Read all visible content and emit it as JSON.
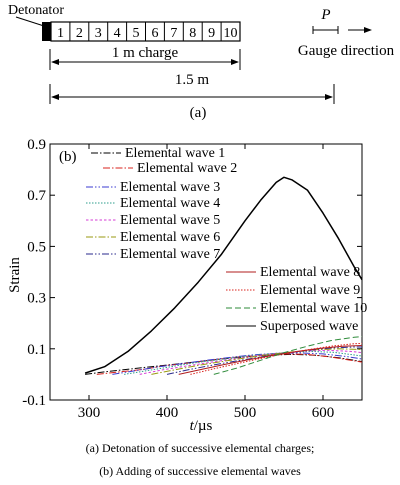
{
  "diagram": {
    "detonator_label": "Detonator",
    "segments": [
      "1",
      "2",
      "3",
      "4",
      "5",
      "6",
      "7",
      "8",
      "9",
      "10"
    ],
    "charge_label": "1 m charge",
    "total_label": "1.5 m",
    "part_label": "(a)",
    "gauge_symbol": "P",
    "gauge_label": "Gauge direction"
  },
  "chart_data": {
    "type": "line",
    "panel_label": "(b)",
    "ylabel": "Strain",
    "xlabel_italic": "t",
    "xlabel_unit": "/µs",
    "xlim": [
      250,
      650
    ],
    "ylim": [
      -0.1,
      0.9
    ],
    "xticks": [
      300,
      400,
      500,
      600
    ],
    "yticks": [
      "-0.1",
      "0.1",
      "0.3",
      "0.5",
      "0.7",
      "0.9"
    ],
    "ytick_values": [
      -0.1,
      0.1,
      0.3,
      0.5,
      0.7,
      0.9
    ],
    "series": [
      {
        "name": "Elemental wave 1",
        "color": "#000000",
        "dash": "7,2,1.5,2",
        "x": [
          295,
          320,
          350,
          380,
          410,
          440,
          470,
          500,
          530,
          560,
          590,
          620,
          650
        ],
        "y": [
          0.0,
          0.01,
          0.02,
          0.03,
          0.04,
          0.05,
          0.06,
          0.068,
          0.075,
          0.078,
          0.075,
          0.065,
          0.05
        ]
      },
      {
        "name": "Elemental wave 2",
        "color": "#d9231d",
        "dash": "7,2,1.5,2",
        "x": [
          310,
          340,
          370,
          400,
          430,
          460,
          490,
          520,
          550,
          580,
          610,
          650
        ],
        "y": [
          0.0,
          0.01,
          0.02,
          0.035,
          0.045,
          0.058,
          0.068,
          0.075,
          0.08,
          0.078,
          0.068,
          0.048
        ]
      },
      {
        "name": "Elemental wave 3",
        "color": "#3b3bd1",
        "dash": "7,2,1.5,2,1.5,2",
        "x": [
          330,
          360,
          390,
          420,
          450,
          480,
          510,
          540,
          570,
          600,
          630,
          650
        ],
        "y": [
          0.0,
          0.015,
          0.03,
          0.042,
          0.055,
          0.066,
          0.076,
          0.082,
          0.084,
          0.08,
          0.07,
          0.06
        ]
      },
      {
        "name": "Elemental wave 4",
        "color": "#2e9e8c",
        "dash": "1.5,1.5",
        "x": [
          345,
          375,
          405,
          435,
          465,
          495,
          525,
          555,
          585,
          615,
          650
        ],
        "y": [
          0.0,
          0.015,
          0.03,
          0.045,
          0.057,
          0.069,
          0.079,
          0.086,
          0.09,
          0.086,
          0.072
        ]
      },
      {
        "name": "Elemental wave 5",
        "color": "#d63bd6",
        "dash": "2.5,2",
        "x": [
          365,
          395,
          425,
          455,
          485,
          515,
          545,
          575,
          605,
          635,
          650
        ],
        "y": [
          0.0,
          0.018,
          0.033,
          0.047,
          0.06,
          0.073,
          0.083,
          0.091,
          0.094,
          0.09,
          0.085
        ]
      },
      {
        "name": "Elemental wave 6",
        "color": "#9a9a10",
        "dash": "7,2,1.5,2",
        "x": [
          380,
          410,
          440,
          470,
          500,
          530,
          560,
          590,
          620,
          650
        ],
        "y": [
          0.0,
          0.018,
          0.035,
          0.05,
          0.064,
          0.077,
          0.088,
          0.096,
          0.1,
          0.097
        ]
      },
      {
        "name": "Elemental wave 7",
        "color": "#2a2a8c",
        "dash": "7,2,1.5,2,1.5,2",
        "x": [
          400,
          430,
          460,
          490,
          520,
          550,
          580,
          610,
          640,
          650
        ],
        "y": [
          0.0,
          0.02,
          0.037,
          0.053,
          0.068,
          0.082,
          0.094,
          0.103,
          0.107,
          0.107
        ]
      },
      {
        "name": "Elemental wave 8",
        "color": "#b01c1c",
        "dash": "",
        "x": [
          415,
          445,
          475,
          505,
          535,
          565,
          595,
          625,
          650
        ],
        "y": [
          0.0,
          0.02,
          0.04,
          0.058,
          0.074,
          0.089,
          0.101,
          0.11,
          0.113
        ]
      },
      {
        "name": "Elemental wave 9",
        "color": "#d9231d",
        "dash": "1.5,1.5",
        "x": [
          430,
          460,
          490,
          520,
          550,
          580,
          610,
          640,
          650
        ],
        "y": [
          0.0,
          0.022,
          0.042,
          0.062,
          0.08,
          0.096,
          0.11,
          0.12,
          0.121
        ]
      },
      {
        "name": "Elemental wave 10",
        "color": "#2e8b3a",
        "dash": "6,3",
        "x": [
          460,
          490,
          520,
          550,
          580,
          610,
          640,
          650
        ],
        "y": [
          0.0,
          0.025,
          0.055,
          0.085,
          0.11,
          0.132,
          0.145,
          0.148
        ]
      },
      {
        "name": "Superposed wave",
        "color": "#000000",
        "dash": "",
        "x": [
          295,
          320,
          350,
          380,
          410,
          440,
          470,
          500,
          520,
          540,
          550,
          560,
          580,
          600,
          620,
          640,
          650
        ],
        "y": [
          0.005,
          0.03,
          0.09,
          0.17,
          0.26,
          0.36,
          0.47,
          0.6,
          0.68,
          0.75,
          0.77,
          0.76,
          0.72,
          0.63,
          0.53,
          0.42,
          0.37
        ]
      }
    ]
  },
  "captions": {
    "line1": "(a)  Detonation  of  successive elemental charges;",
    "line2": "(b) Adding of successive elemental waves"
  }
}
